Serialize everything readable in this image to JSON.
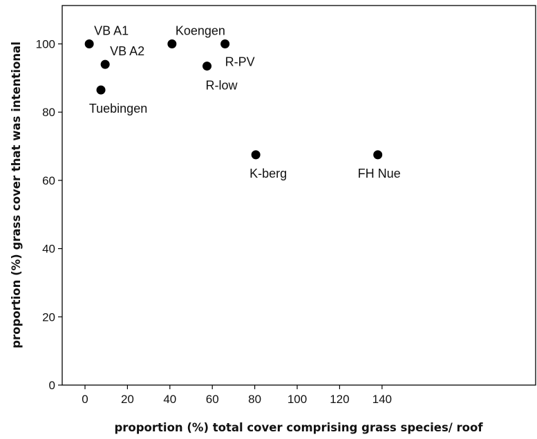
{
  "chart_data": {
    "type": "scatter",
    "title": "",
    "xlabel": "proportion (%) total cover comprising grass species/ roof",
    "ylabel": "proportion (%) grass cover that was intentional",
    "xlim": [
      -8,
      150
    ],
    "ylim": [
      0,
      112
    ],
    "x_ticks": [
      0,
      20,
      40,
      60,
      80,
      100,
      120,
      140
    ],
    "y_ticks": [
      0,
      20,
      40,
      60,
      80,
      100
    ],
    "grid": false,
    "legend": "none",
    "marker_color": "#000000",
    "points": [
      {
        "label": "VB A1",
        "x": 2,
        "y": 100
      },
      {
        "label": "VB A2",
        "x": 9.5,
        "y": 94
      },
      {
        "label": "Tuebingen",
        "x": 7.5,
        "y": 86.5
      },
      {
        "label": "Koengen",
        "x": 41,
        "y": 100
      },
      {
        "label": "R-low",
        "x": 57.5,
        "y": 93.5
      },
      {
        "label": "R-PV",
        "x": 66,
        "y": 100
      },
      {
        "label": "K-berg",
        "x": 80.5,
        "y": 67.5
      },
      {
        "label": "FH Nue",
        "x": 138,
        "y": 67.5
      }
    ]
  }
}
